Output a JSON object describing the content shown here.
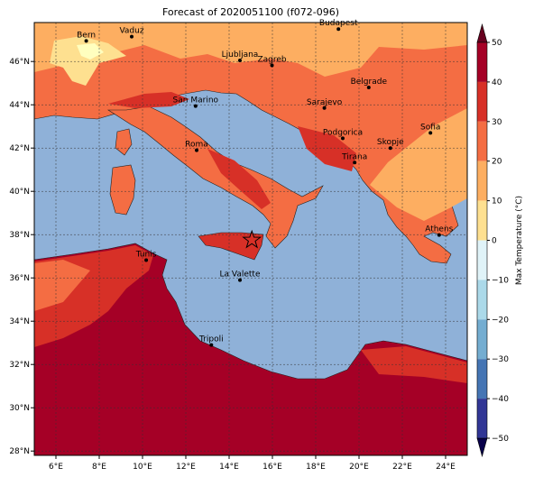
{
  "title": "Forecast of 2020051100 (f072-096)",
  "map": {
    "lon_range": [
      5,
      25
    ],
    "lat_range": [
      27.8,
      47.8
    ],
    "lon_ticks": [
      "6°E",
      "8°E",
      "10°E",
      "12°E",
      "14°E",
      "16°E",
      "18°E",
      "20°E",
      "22°E",
      "24°E"
    ],
    "lat_ticks": [
      "28°N",
      "30°N",
      "32°N",
      "34°N",
      "36°N",
      "38°N",
      "40°N",
      "42°N",
      "44°N",
      "46°N"
    ],
    "grid": true,
    "cities": [
      {
        "name": "Bern",
        "lon": 7.4,
        "lat": 46.95
      },
      {
        "name": "Vaduz",
        "lon": 9.5,
        "lat": 47.15
      },
      {
        "name": "Budapest",
        "lon": 19.05,
        "lat": 47.5
      },
      {
        "name": "Ljubljana",
        "lon": 14.5,
        "lat": 46.05
      },
      {
        "name": "Zagreb",
        "lon": 15.98,
        "lat": 45.82
      },
      {
        "name": "Belgrade",
        "lon": 20.45,
        "lat": 44.8
      },
      {
        "name": "San Marino",
        "lon": 12.45,
        "lat": 43.94
      },
      {
        "name": "Sarajevo",
        "lon": 18.4,
        "lat": 43.85
      },
      {
        "name": "Sofia",
        "lon": 23.3,
        "lat": 42.7
      },
      {
        "name": "Podgorica",
        "lon": 19.25,
        "lat": 42.45
      },
      {
        "name": "Skopje",
        "lon": 21.45,
        "lat": 42.0
      },
      {
        "name": "Roma",
        "lon": 12.5,
        "lat": 41.9
      },
      {
        "name": "Tirana",
        "lon": 19.8,
        "lat": 41.33
      },
      {
        "name": "Athens",
        "lon": 23.7,
        "lat": 37.98
      },
      {
        "name": "Tunis",
        "lon": 10.17,
        "lat": 36.82
      },
      {
        "name": "La Valette",
        "lon": 14.5,
        "lat": 35.9
      },
      {
        "name": "Tripoli",
        "lon": 13.18,
        "lat": 32.9
      }
    ],
    "marker": {
      "symbol": "star",
      "lon": 15.05,
      "lat": 37.75
    },
    "colors": {
      "sea": "#8fb1d8",
      "c10_20": "#fdae61",
      "c20_30": "#f46d43",
      "c30_40": "#d73027",
      "c40_50": "#a50026",
      "c0_10": "#fee090",
      "cold": "#ffffbf"
    }
  },
  "colorbar": {
    "label": "Max Temperature (°C)",
    "ticks": [
      "50",
      "40",
      "30",
      "20",
      "10",
      "0",
      "−10",
      "−20",
      "−30",
      "−40",
      "−50"
    ],
    "colors": [
      "#a50026",
      "#d73027",
      "#f46d43",
      "#fdae61",
      "#fee090",
      "#e0f3f8",
      "#abd9e9",
      "#74add1",
      "#4575b4",
      "#313695"
    ],
    "extend_top": "#67001f",
    "extend_bottom": "#08004a"
  }
}
